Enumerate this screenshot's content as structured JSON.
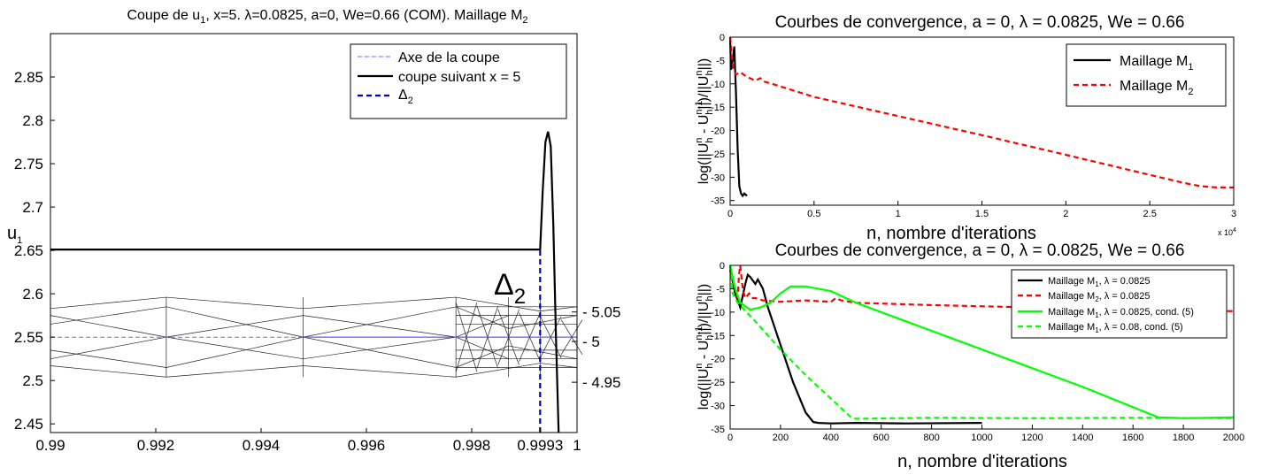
{
  "chart_data": [
    {
      "type": "line",
      "title": "Coupe de u_1, x=5. λ=0.0825, a=0, We=0.66 (COM). Maillage M_2",
      "title_parts": [
        "Coupe de u",
        "1",
        ", x=5. λ=0.0825, a=0, We=0.66 (COM). Maillage M",
        "2"
      ],
      "ylabel": "u",
      "ylabel_sub": "1",
      "xlim": [
        0.99,
        1.0
      ],
      "ylim": [
        2.44,
        2.9
      ],
      "xticks": [
        "0.99",
        "0.992",
        "0.994",
        "0.996",
        "0.998",
        "0.9993",
        "1"
      ],
      "xtick_values": [
        0.99,
        0.992,
        0.994,
        0.996,
        0.998,
        0.9993,
        1.0
      ],
      "yticks": [
        "2.45",
        "2.5",
        "2.55",
        "2.6",
        "2.65",
        "2.7",
        "2.75",
        "2.8",
        "2.85"
      ],
      "ytick_values": [
        2.45,
        2.5,
        2.55,
        2.6,
        2.65,
        2.7,
        2.75,
        2.8,
        2.85
      ],
      "mesh_ticks": [
        "5.05",
        "5",
        "4.95"
      ],
      "mesh_tick_values": [
        5.05,
        5.0,
        4.95
      ],
      "annotation": "Δ",
      "annotation_sub": "2",
      "grid": false,
      "legend_position": "top-right",
      "series": [
        {
          "name": "Axe de la coupe",
          "color": "#6b6bff",
          "style": "dashed",
          "x": [
            0.99,
            1.0
          ],
          "y": [
            2.55,
            2.55
          ]
        },
        {
          "name": "coupe suivant x = 5",
          "color": "#000000",
          "style": "solid",
          "x": [
            0.99,
            0.9993,
            0.99935,
            0.9994,
            0.99945,
            0.9995,
            0.99955,
            0.9996,
            0.99965
          ],
          "y": [
            2.651,
            2.651,
            2.72,
            2.775,
            2.787,
            2.77,
            2.68,
            2.55,
            2.44
          ]
        },
        {
          "name": "Δ_2",
          "name_main": "Δ",
          "name_sub": "2",
          "color": "#0000cc",
          "style": "dashed",
          "x": [
            0.9993,
            0.9993
          ],
          "y": [
            2.44,
            2.651
          ]
        }
      ]
    },
    {
      "type": "line",
      "title": "Courbes de convergence, a = 0, λ = 0.0825, We = 0.66",
      "xlabel": "n, nombre d'iterations",
      "ylabel": "log(||U_h^n - U_h^(n-1)||/||U_h^n||)",
      "xlim": [
        0,
        30000
      ],
      "ylim": [
        -36,
        0
      ],
      "xticks": [
        "0",
        "0.5",
        "1",
        "1.5",
        "2",
        "2.5",
        "3"
      ],
      "xtick_values": [
        0,
        5000,
        10000,
        15000,
        20000,
        25000,
        30000
      ],
      "x_multiplier": "x 10",
      "x_multiplier_exp": "4",
      "yticks": [
        "0",
        "-5",
        "-10",
        "-15",
        "-20",
        "-25",
        "-30",
        "-35"
      ],
      "ytick_values": [
        0,
        -5,
        -10,
        -15,
        -20,
        -25,
        -30,
        -35
      ],
      "grid": false,
      "legend_position": "top-right",
      "series": [
        {
          "name": "Maillage M_1",
          "name_main": "Maillage M",
          "name_sub": "1",
          "color": "#000000",
          "style": "solid",
          "x": [
            0,
            50,
            150,
            250,
            350,
            450,
            550,
            650,
            750,
            850,
            1000
          ],
          "y": [
            0,
            -7,
            -5,
            -2,
            -12,
            -24,
            -32,
            -33.5,
            -34,
            -33.5,
            -34
          ]
        },
        {
          "name": "Maillage M_2",
          "name_main": "Maillage M",
          "name_sub": "2",
          "color": "#ff0000",
          "style": "dashed",
          "x": [
            0,
            100,
            200,
            350,
            600,
            1000,
            1500,
            1800,
            2000,
            2500,
            5000,
            10000,
            15000,
            20000,
            25000,
            27000,
            28000,
            29000,
            30000
          ],
          "y": [
            0,
            -4,
            -7,
            -8,
            -7.5,
            -8.5,
            -9.3,
            -8.8,
            -9.5,
            -10,
            -12.8,
            -16.9,
            -21,
            -25.2,
            -29.5,
            -31.2,
            -31.9,
            -32.2,
            -32.2
          ]
        }
      ]
    },
    {
      "type": "line",
      "title": "Courbes de convergence, a = 0, λ = 0.0825, We = 0.66",
      "xlabel": "n, nombre d'iterations",
      "ylabel": "log(||U_h^n - U_h^(n-1)||/||U_h^n||)",
      "xlim": [
        0,
        2000
      ],
      "ylim": [
        -35,
        0
      ],
      "xticks": [
        "0",
        "200",
        "400",
        "600",
        "800",
        "1000",
        "1200",
        "1400",
        "1600",
        "1800",
        "2000"
      ],
      "xtick_values": [
        0,
        200,
        400,
        600,
        800,
        1000,
        1200,
        1400,
        1600,
        1800,
        2000
      ],
      "yticks": [
        "0",
        "-5",
        "-10",
        "-15",
        "-20",
        "-25",
        "-30",
        "-35"
      ],
      "ytick_values": [
        0,
        -5,
        -10,
        -15,
        -20,
        -25,
        -30,
        -35
      ],
      "grid": false,
      "legend_position": "top-right",
      "series": [
        {
          "name": "Maillage M_1, λ = 0.0825",
          "name_main": "Maillage M",
          "name_sub": "1",
          "name_tail": ", λ = 0.0825",
          "color": "#000000",
          "style": "solid",
          "x": [
            0,
            20,
            40,
            60,
            70,
            80,
            100,
            110,
            130,
            150,
            200,
            250,
            300,
            330,
            350,
            400,
            500,
            700,
            1000
          ],
          "y": [
            -1,
            -6,
            -9,
            -4,
            -2,
            -2.5,
            -4,
            -3,
            -5,
            -9,
            -17,
            -25,
            -31.5,
            -33.5,
            -33.7,
            -33.8,
            -33.7,
            -33.8,
            -33.7
          ]
        },
        {
          "name": "Maillage M_2, λ = 0.0825",
          "name_main": "Maillage M",
          "name_sub": "2",
          "name_tail": ", λ = 0.0825",
          "color": "#ff0000",
          "style": "dashed",
          "x": [
            0,
            15,
            30,
            35,
            40,
            50,
            60,
            75,
            90,
            100,
            130,
            200,
            300,
            400,
            420,
            440,
            500,
            800,
            1200,
            1600,
            2000
          ],
          "y": [
            -1,
            -4,
            -7,
            -2,
            0,
            -5,
            -7,
            -6,
            -7,
            -7,
            -7.5,
            -7.8,
            -7.5,
            -7.8,
            -7,
            -7.5,
            -8,
            -8.5,
            -9,
            -9.5,
            -9.8
          ]
        },
        {
          "name": "Maillage M_1, λ = 0.0825, cond. (5)",
          "name_main": "Maillage M",
          "name_sub": "1",
          "name_tail": ", λ = 0.0825, cond. (5)",
          "color": "#00ff00",
          "style": "solid",
          "x": [
            0,
            20,
            40,
            80,
            120,
            160,
            200,
            240,
            300,
            350,
            400,
            420,
            500,
            800,
            1100,
            1400,
            1700,
            1800,
            2000
          ],
          "y": [
            0,
            -5,
            -8,
            -9.5,
            -9,
            -8,
            -6,
            -4.5,
            -4.5,
            -5,
            -5.5,
            -6,
            -8,
            -14,
            -20,
            -26,
            -32.5,
            -32.7,
            -32.5
          ]
        },
        {
          "name": "Maillage M_1, λ = 0.08, cond. (5)",
          "name_main": "Maillage M",
          "name_sub": "1",
          "name_tail": ", λ = 0.08, cond. (5)",
          "color": "#00ff00",
          "style": "dashed",
          "x": [
            0,
            10,
            30,
            100,
            200,
            300,
            400,
            480,
            500,
            800,
            1200,
            1600,
            2000
          ],
          "y": [
            0,
            -6,
            -8,
            -12,
            -18,
            -23.5,
            -28.5,
            -32.5,
            -32.8,
            -32.6,
            -32.7,
            -32.6,
            -32.7
          ]
        }
      ]
    }
  ]
}
